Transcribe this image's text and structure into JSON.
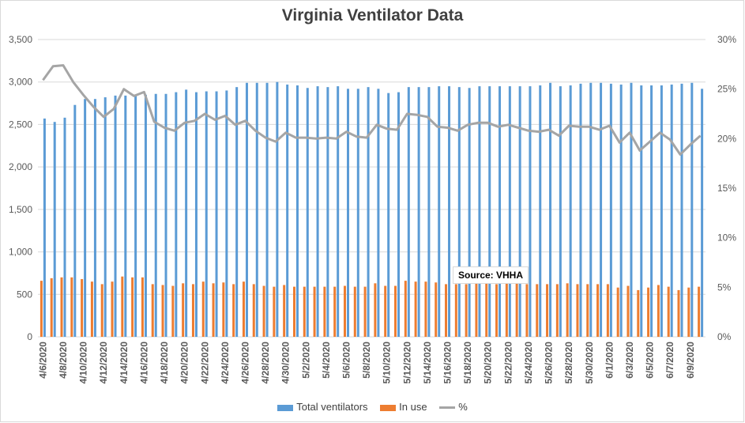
{
  "chart_data": {
    "type": "bar",
    "title": "Virginia Ventilator Data",
    "annotation": "Source: VHHA",
    "categories": [
      "4/6/2020",
      "4/7/2020",
      "4/8/2020",
      "4/9/2020",
      "4/10/2020",
      "4/11/2020",
      "4/12/2020",
      "4/13/2020",
      "4/14/2020",
      "4/15/2020",
      "4/16/2020",
      "4/17/2020",
      "4/18/2020",
      "4/19/2020",
      "4/20/2020",
      "4/21/2020",
      "4/22/2020",
      "4/23/2020",
      "4/24/2020",
      "4/25/2020",
      "4/26/2020",
      "4/27/2020",
      "4/28/2020",
      "4/29/2020",
      "4/30/2020",
      "5/1/2020",
      "5/2/2020",
      "5/3/2020",
      "5/4/2020",
      "5/5/2020",
      "5/6/2020",
      "5/7/2020",
      "5/8/2020",
      "5/9/2020",
      "5/10/2020",
      "5/11/2020",
      "5/12/2020",
      "5/13/2020",
      "5/14/2020",
      "5/15/2020",
      "5/16/2020",
      "5/17/2020",
      "5/18/2020",
      "5/19/2020",
      "5/20/2020",
      "5/21/2020",
      "5/22/2020",
      "5/23/2020",
      "5/24/2020",
      "5/25/2020",
      "5/26/2020",
      "5/27/2020",
      "5/28/2020",
      "5/29/2020",
      "5/30/2020",
      "5/31/2020",
      "6/1/2020",
      "6/2/2020",
      "6/3/2020",
      "6/4/2020",
      "6/5/2020",
      "6/6/2020",
      "6/7/2020",
      "6/8/2020",
      "6/9/2020",
      "6/10/2020"
    ],
    "tick_labels": [
      "4/6/2020",
      "",
      "4/8/2020",
      "",
      "4/10/2020",
      "",
      "4/12/2020",
      "",
      "4/14/2020",
      "",
      "4/16/2020",
      "",
      "4/18/2020",
      "",
      "4/20/2020",
      "",
      "4/22/2020",
      "",
      "4/24/2020",
      "",
      "4/26/2020",
      "",
      "4/28/2020",
      "",
      "4/30/2020",
      "",
      "5/2/2020",
      "",
      "5/4/2020",
      "",
      "5/6/2020",
      "",
      "5/8/2020",
      "",
      "5/10/2020",
      "",
      "5/12/2020",
      "",
      "5/14/2020",
      "",
      "5/16/2020",
      "",
      "5/18/2020",
      "",
      "5/20/2020",
      "",
      "5/22/2020",
      "",
      "5/24/2020",
      "",
      "5/26/2020",
      "",
      "5/28/2020",
      "",
      "5/30/2020",
      "",
      "6/1/2020",
      "",
      "6/3/2020",
      "",
      "6/5/2020",
      "",
      "6/7/2020",
      "",
      "6/9/2020",
      ""
    ],
    "series": [
      {
        "name": "Total ventilators",
        "axis": "left",
        "kind": "bar",
        "color": "#5b9bd5",
        "values": [
          2570,
          2530,
          2580,
          2730,
          2800,
          2800,
          2820,
          2840,
          2840,
          2840,
          2850,
          2860,
          2860,
          2880,
          2910,
          2880,
          2890,
          2890,
          2900,
          2940,
          2990,
          2990,
          2990,
          3000,
          2970,
          2960,
          2930,
          2950,
          2940,
          2950,
          2920,
          2920,
          2940,
          2920,
          2870,
          2880,
          2940,
          2940,
          2940,
          2950,
          2950,
          2940,
          2930,
          2950,
          2950,
          2950,
          2950,
          2950,
          2950,
          2960,
          2990,
          2950,
          2960,
          2980,
          2990,
          2990,
          2980,
          2970,
          2990,
          2960,
          2960,
          2960,
          2970,
          2980,
          2990,
          2920
        ]
      },
      {
        "name": "In use",
        "axis": "left",
        "kind": "bar",
        "color": "#ed7d31",
        "values": [
          660,
          690,
          700,
          700,
          680,
          650,
          620,
          650,
          710,
          700,
          700,
          620,
          610,
          600,
          630,
          620,
          650,
          630,
          640,
          620,
          650,
          620,
          600,
          590,
          610,
          590,
          590,
          590,
          590,
          590,
          600,
          590,
          590,
          630,
          600,
          600,
          660,
          650,
          650,
          640,
          620,
          620,
          620,
          640,
          640,
          620,
          630,
          640,
          620,
          620,
          620,
          620,
          630,
          620,
          620,
          620,
          620,
          580,
          600,
          550,
          580,
          610,
          590,
          550,
          580,
          590
        ]
      },
      {
        "name": "%",
        "axis": "right",
        "kind": "line",
        "color": "#a5a5a5",
        "values": [
          25.9,
          27.3,
          27.4,
          25.7,
          24.4,
          23.2,
          22.2,
          23.0,
          25.0,
          24.3,
          24.7,
          21.7,
          21.1,
          20.8,
          21.6,
          21.8,
          22.5,
          21.9,
          22.3,
          21.4,
          21.8,
          20.8,
          20.1,
          19.7,
          20.6,
          20.1,
          20.1,
          20.0,
          20.1,
          20.0,
          20.7,
          20.2,
          20.1,
          21.4,
          21.0,
          20.9,
          22.5,
          22.4,
          22.2,
          21.2,
          21.1,
          20.8,
          21.4,
          21.6,
          21.6,
          21.2,
          21.4,
          21.1,
          20.8,
          20.7,
          20.9,
          20.3,
          21.3,
          21.2,
          21.2,
          20.9,
          21.3,
          19.6,
          20.6,
          18.8,
          19.7,
          20.6,
          19.9,
          18.4,
          19.4,
          20.3
        ]
      }
    ],
    "y_left": {
      "min": 0,
      "max": 3500,
      "ticks": [
        "0",
        "500",
        "1,000",
        "1,500",
        "2,000",
        "2,500",
        "3,000",
        "3,500"
      ]
    },
    "y_right": {
      "min": 0,
      "max": 30,
      "ticks": [
        "0%",
        "5%",
        "10%",
        "15%",
        "20%",
        "25%",
        "30%"
      ]
    },
    "xlabel": "",
    "ylabel": "",
    "grid": "horizontal",
    "legend_position": "bottom"
  }
}
